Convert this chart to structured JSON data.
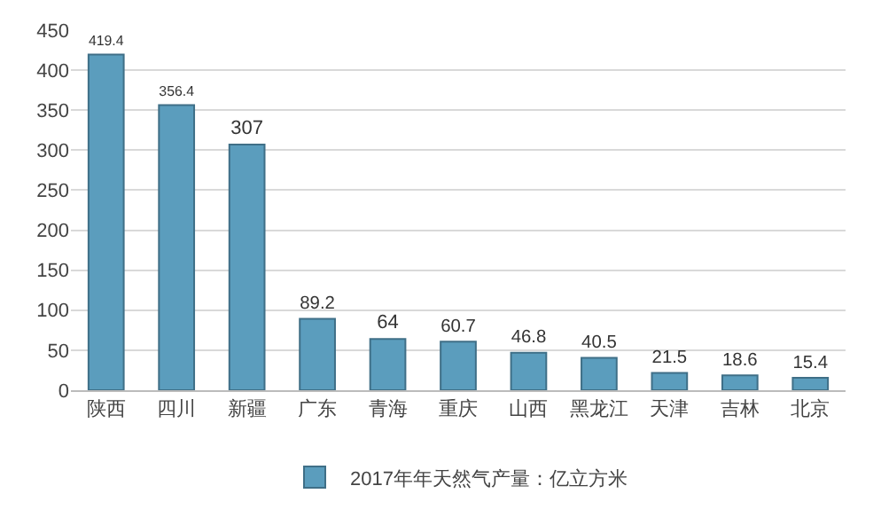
{
  "chart_data": {
    "type": "bar",
    "categories": [
      "陕西",
      "四川",
      "新疆",
      "广东",
      "青海",
      "重庆",
      "山西",
      "黑龙江",
      "天津",
      "吉林",
      "北京"
    ],
    "series": [
      {
        "name": "2017年年天然气产量：亿立方米",
        "color": "#5b9dbd",
        "values": [
          419.4,
          356.4,
          307,
          89.2,
          64,
          60.7,
          46.8,
          40.5,
          21.5,
          18.6,
          15.4
        ]
      }
    ],
    "ylim": [
      0,
      450
    ],
    "yticks": [
      0,
      50,
      100,
      150,
      200,
      250,
      300,
      350,
      400,
      450
    ],
    "grid": "y",
    "legend": "bottom",
    "data_labels": true
  }
}
